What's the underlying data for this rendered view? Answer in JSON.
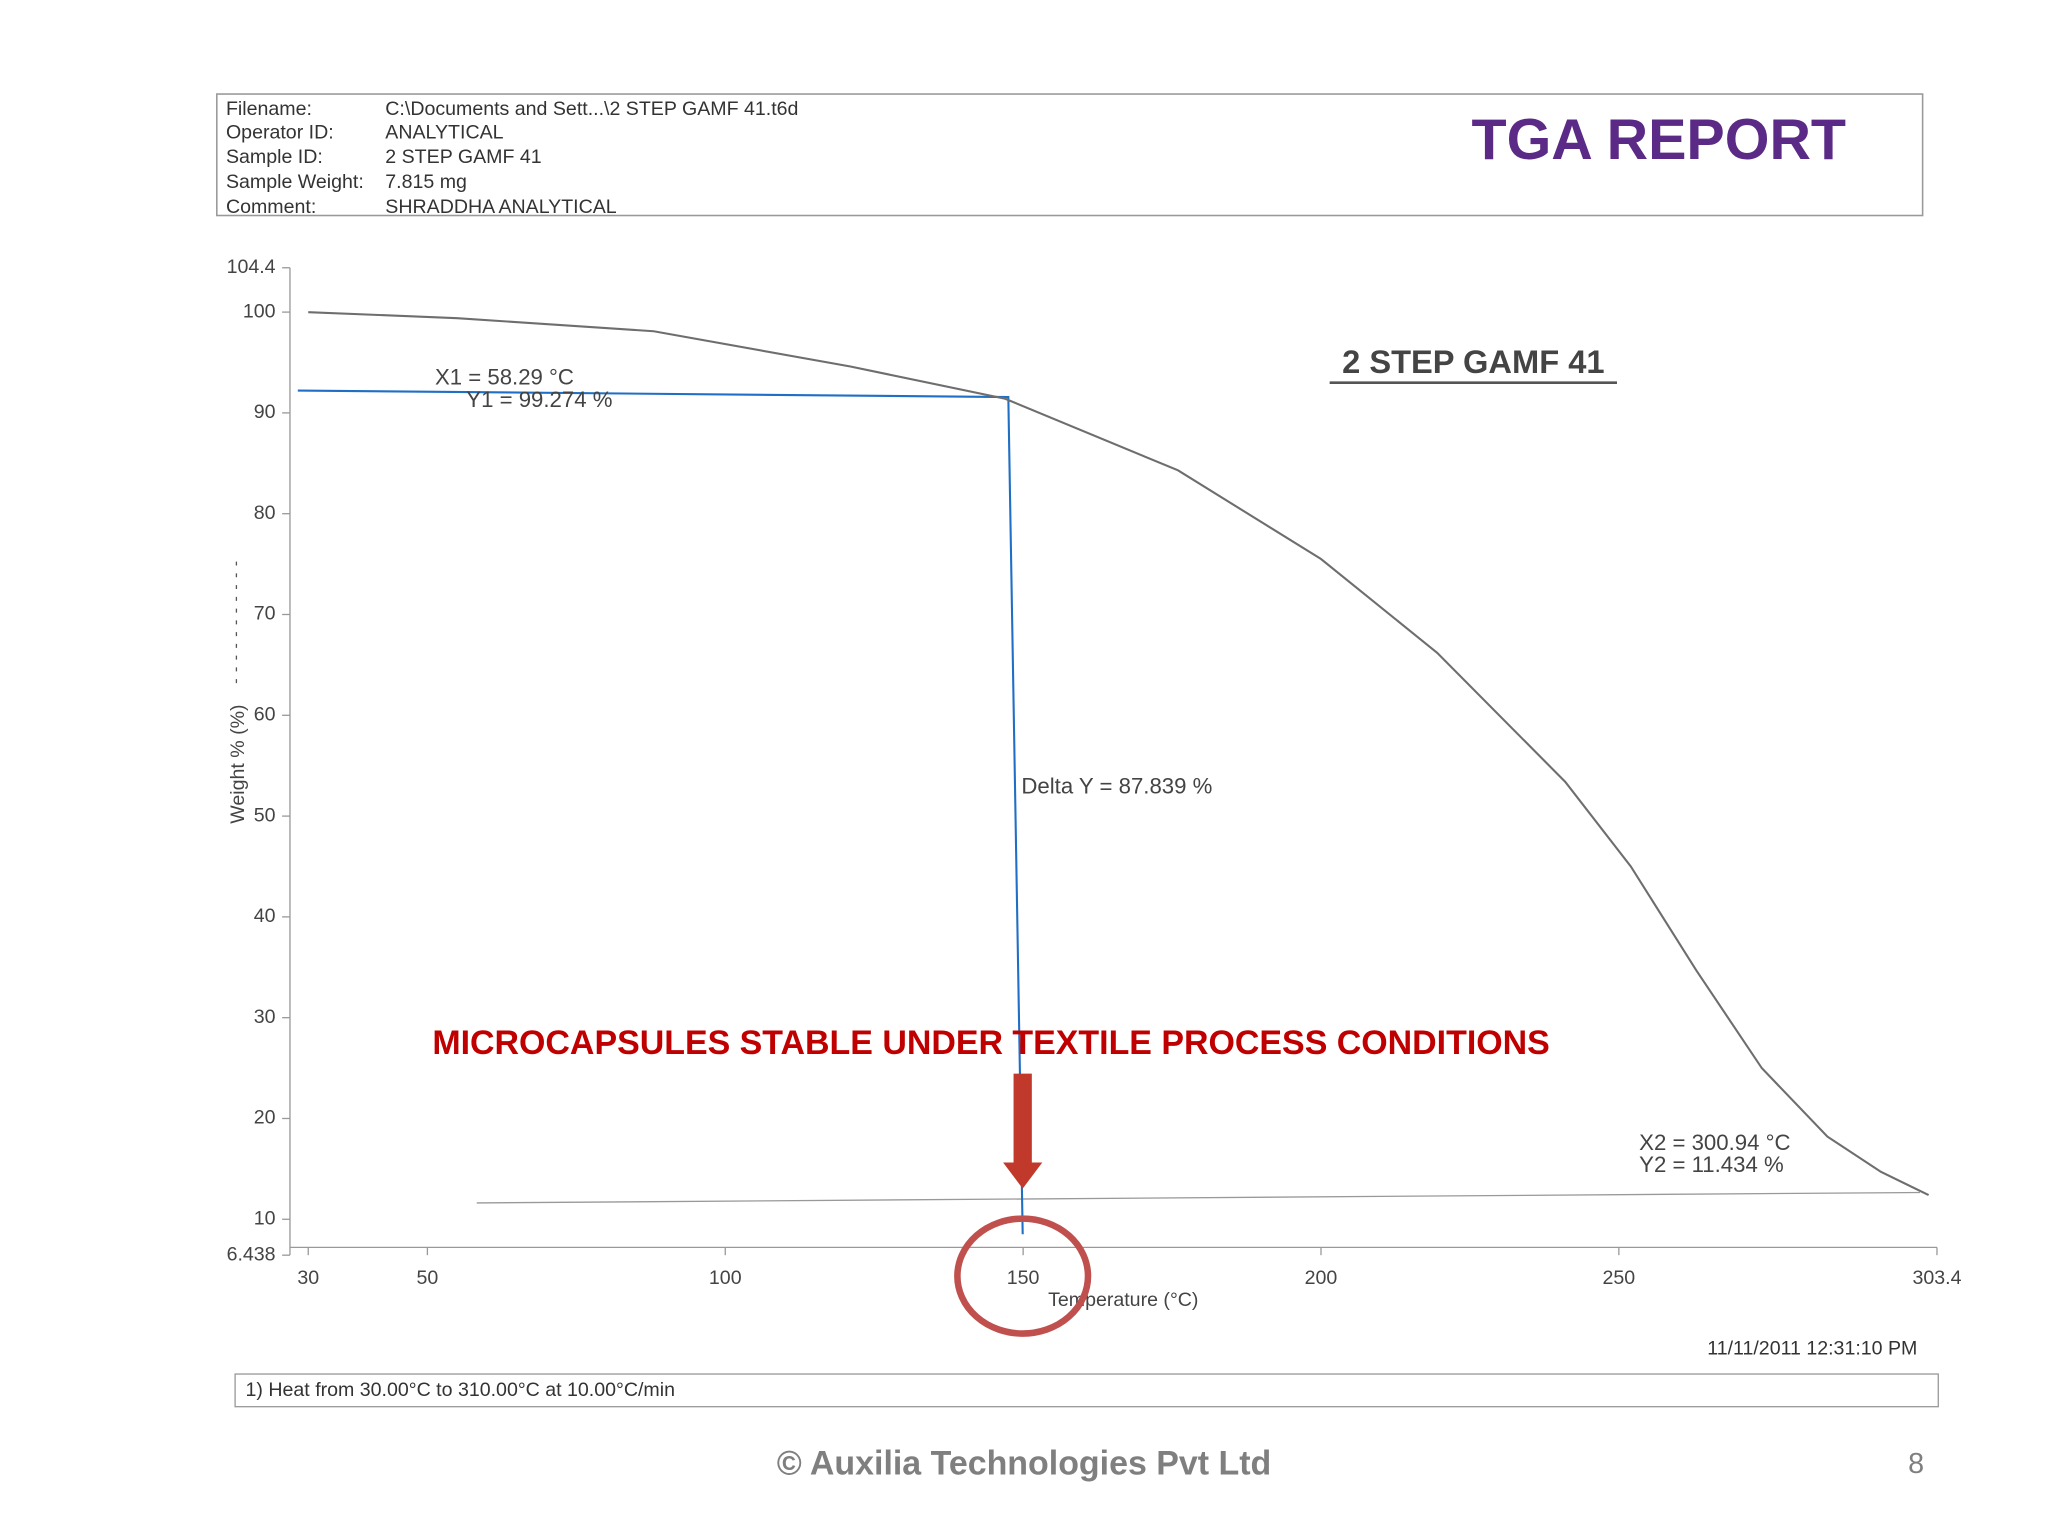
{
  "header": {
    "title": "TGA REPORT",
    "fields": [
      {
        "label": "Filename:",
        "value": "C:\\Documents and Sett...\\2 STEP GAMF 41.t6d"
      },
      {
        "label": "Operator ID:",
        "value": "ANALYTICAL"
      },
      {
        "label": "Sample ID:",
        "value": "2 STEP GAMF 41"
      },
      {
        "label": "Sample Weight:",
        "value": "7.815 mg"
      },
      {
        "label": "Comment:",
        "value": "SHRADDHA ANALYTICAL"
      }
    ]
  },
  "chart_data": {
    "type": "line",
    "title": "2 STEP GAMF 41",
    "x_label": "Temperature (°C)",
    "y_label": "Weight % (%)",
    "x": [
      30,
      55,
      88,
      121,
      147,
      176,
      200,
      219.5,
      241,
      252,
      263,
      274,
      285,
      294,
      302
    ],
    "series": [
      {
        "name": "Weight",
        "color": "#6e6e6e",
        "values": [
          100,
          99.4,
          98.1,
          94.6,
          91.4,
          84.3,
          75.5,
          66.2,
          53.4,
          45,
          34.7,
          25,
          18.2,
          14.7,
          12.4
        ]
      }
    ],
    "xlim": [
      30,
      303.4
    ],
    "xticks": [
      30,
      50,
      100,
      150,
      200,
      250,
      303.4
    ],
    "ylim": [
      6.438,
      104.4
    ],
    "yticks": [
      6.438,
      10,
      20,
      30,
      40,
      50,
      60,
      70,
      80,
      90,
      100,
      104.4
    ],
    "annotations": [
      "X1 = 58.29 °C",
      "Y1 = 99.274 %",
      "Delta Y = 87.839 %",
      "X2 = 300.94 °C",
      "Y2 = 11.434 %"
    ]
  },
  "report": {
    "method": "1)  Heat from 30.00°C to 310.00°C at 10.00°C/min",
    "timestamp": "11/11/2011 12:31:10 PM"
  },
  "slide": {
    "callout": "MICROCAPSULES STABLE UNDER TEXTILE PROCESS CONDITIONS",
    "footer": "© Auxilia Technologies Pvt Ltd",
    "page_number": 8
  }
}
